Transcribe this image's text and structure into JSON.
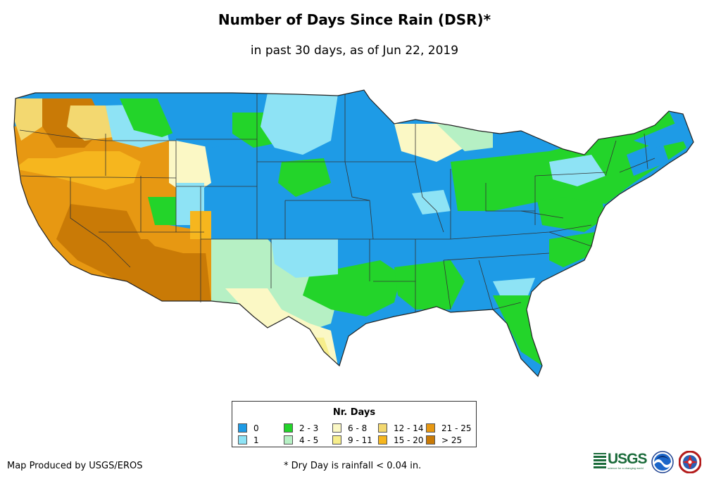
{
  "title": "Number of Days Since Rain (DSR)*",
  "subtitle": "in past 30 days, as of Jun 22, 2019",
  "legend": {
    "title": "Nr. Days",
    "items": [
      {
        "label": "0",
        "color": "#1e9be6"
      },
      {
        "label": "1",
        "color": "#8ee3f5"
      },
      {
        "label": "2 - 3",
        "color": "#23d42a"
      },
      {
        "label": "4 - 5",
        "color": "#b6f0c4"
      },
      {
        "label": "6 - 8",
        "color": "#fbf8c5"
      },
      {
        "label": "9 - 11",
        "color": "#f7ee8c"
      },
      {
        "label": "12 - 14",
        "color": "#f3d870"
      },
      {
        "label": "15 - 20",
        "color": "#f6b61e"
      },
      {
        "label": "21 - 25",
        "color": "#e79812"
      },
      {
        "label": "> 25",
        "color": "#c97a06"
      }
    ]
  },
  "credit": "Map Produced by USGS/EROS",
  "footnote": "* Dry Day is rainfall < 0.04 in.",
  "logos": {
    "usgs": "USGS",
    "usgs_tagline": "science for a changing world",
    "noaa_icon": "noaa-logo-icon",
    "nws_icon": "nws-logo-icon"
  }
}
